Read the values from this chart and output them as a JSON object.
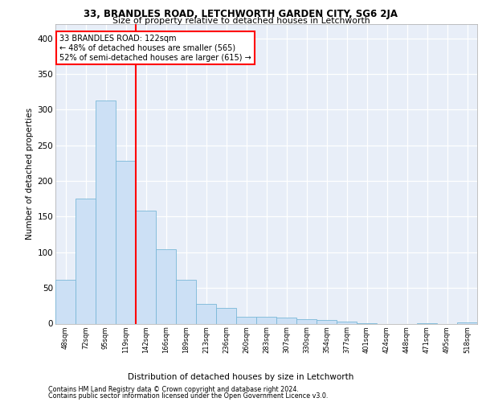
{
  "title1": "33, BRANDLES ROAD, LETCHWORTH GARDEN CITY, SG6 2JA",
  "title2": "Size of property relative to detached houses in Letchworth",
  "xlabel": "Distribution of detached houses by size in Letchworth",
  "ylabel": "Number of detached properties",
  "bar_color": "#cce0f5",
  "bar_edge_color": "#7ab8d8",
  "bg_color": "#e8eef8",
  "grid_color": "#ffffff",
  "categories": [
    "48sqm",
    "72sqm",
    "95sqm",
    "119sqm",
    "142sqm",
    "166sqm",
    "189sqm",
    "213sqm",
    "236sqm",
    "260sqm",
    "283sqm",
    "307sqm",
    "330sqm",
    "354sqm",
    "377sqm",
    "401sqm",
    "424sqm",
    "448sqm",
    "471sqm",
    "495sqm",
    "518sqm"
  ],
  "values": [
    62,
    175,
    313,
    228,
    158,
    104,
    62,
    28,
    22,
    10,
    10,
    8,
    6,
    5,
    3,
    1,
    0,
    0,
    1,
    0,
    2
  ],
  "vline_x": 3.5,
  "annotation_line1": "33 BRANDLES ROAD: 122sqm",
  "annotation_line2": "← 48% of detached houses are smaller (565)",
  "annotation_line3": "52% of semi-detached houses are larger (615) →",
  "footer1": "Contains HM Land Registry data © Crown copyright and database right 2024.",
  "footer2": "Contains public sector information licensed under the Open Government Licence v3.0.",
  "ylim": [
    0,
    420
  ],
  "yticks": [
    0,
    50,
    100,
    150,
    200,
    250,
    300,
    350,
    400
  ]
}
